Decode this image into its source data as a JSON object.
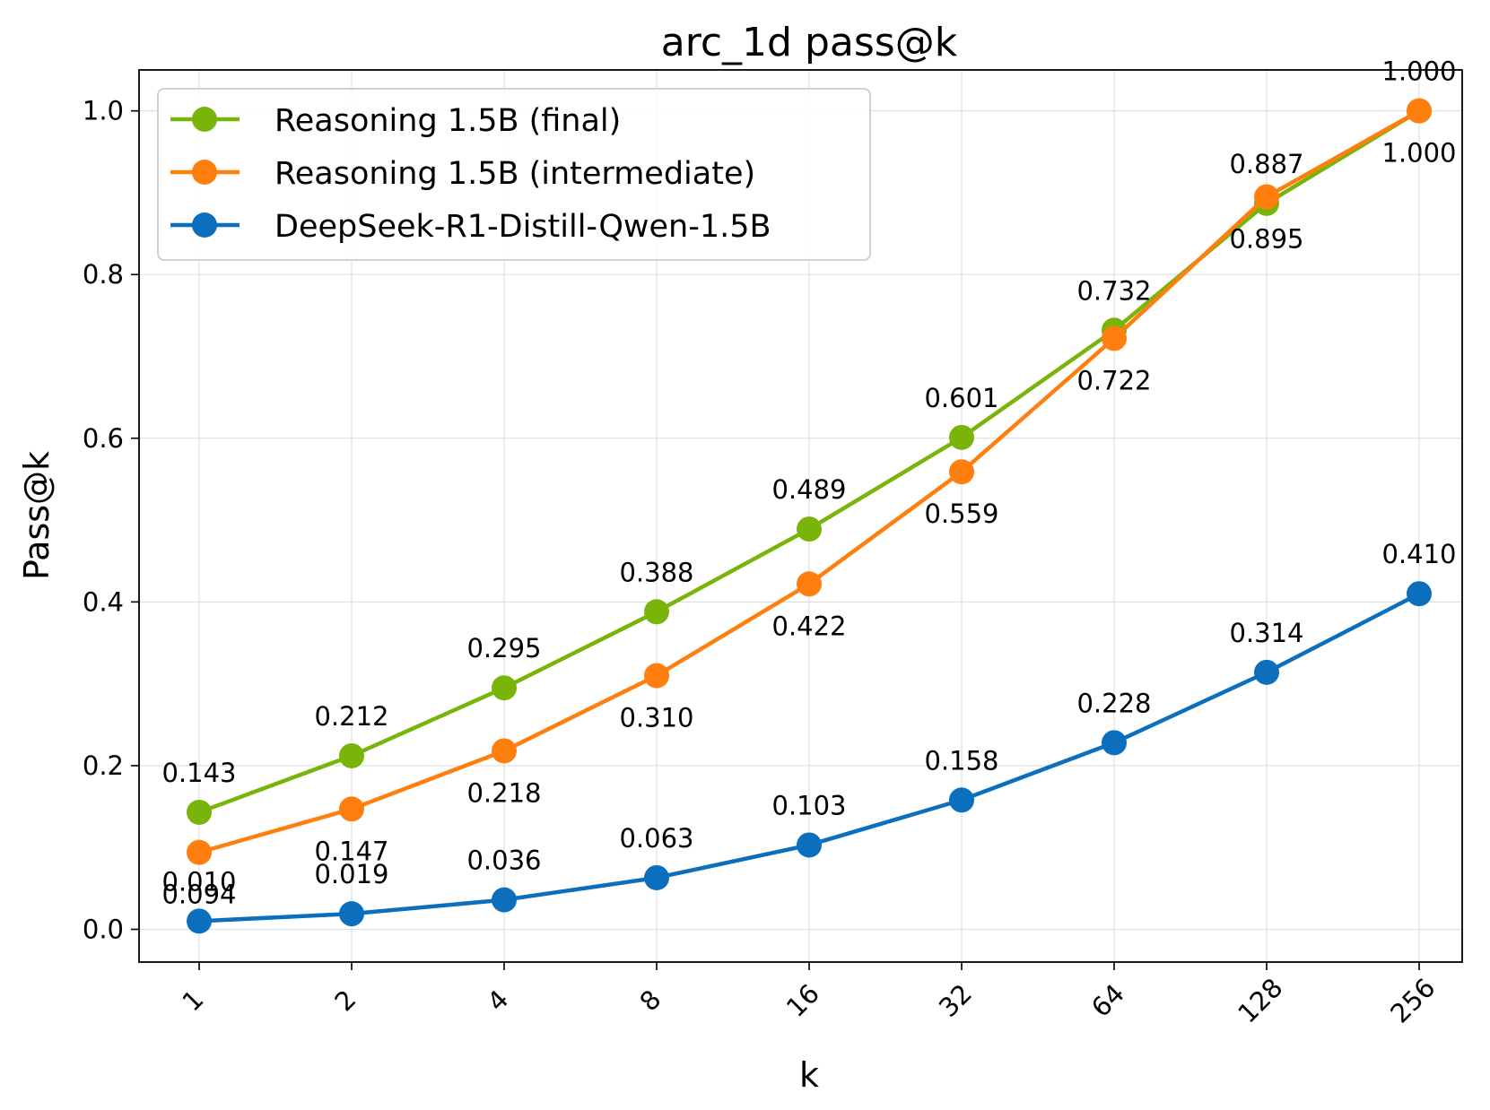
{
  "chart_data": {
    "type": "line",
    "title": "arc_1d pass@k",
    "xlabel": "k",
    "ylabel": "Pass@k",
    "categories": [
      "1",
      "2",
      "4",
      "8",
      "16",
      "32",
      "64",
      "128",
      "256"
    ],
    "ylim": [
      -0.04,
      1.05
    ],
    "yticks": [
      0.0,
      0.2,
      0.4,
      0.6,
      0.8,
      1.0
    ],
    "ytick_labels": [
      "0.0",
      "0.2",
      "0.4",
      "0.6",
      "0.8",
      "1.0"
    ],
    "grid": true,
    "legend_position": "top-left",
    "series": [
      {
        "name": "Reasoning 1.5B (final)",
        "color": "#78b40a",
        "values": [
          0.143,
          0.212,
          0.295,
          0.388,
          0.489,
          0.601,
          0.732,
          0.887,
          1.0
        ],
        "labels": [
          "0.143",
          "0.212",
          "0.295",
          "0.388",
          "0.489",
          "0.601",
          "0.732",
          "0.887",
          "1.000"
        ],
        "label_position": "above"
      },
      {
        "name": "Reasoning 1.5B (intermediate)",
        "color": "#ff7f0e",
        "values": [
          0.094,
          0.147,
          0.218,
          0.31,
          0.422,
          0.559,
          0.722,
          0.895,
          1.0
        ],
        "labels": [
          "0.094",
          "0.147",
          "0.218",
          "0.310",
          "0.422",
          "0.559",
          "0.722",
          "0.895",
          "1.000"
        ],
        "label_position": "below"
      },
      {
        "name": "DeepSeek-R1-Distill-Qwen-1.5B",
        "color": "#0b6fbd",
        "values": [
          0.01,
          0.019,
          0.036,
          0.063,
          0.103,
          0.158,
          0.228,
          0.314,
          0.41
        ],
        "labels": [
          "0.010",
          "0.019",
          "0.036",
          "0.063",
          "0.103",
          "0.158",
          "0.228",
          "0.314",
          "0.410"
        ],
        "label_position": "above"
      }
    ]
  }
}
